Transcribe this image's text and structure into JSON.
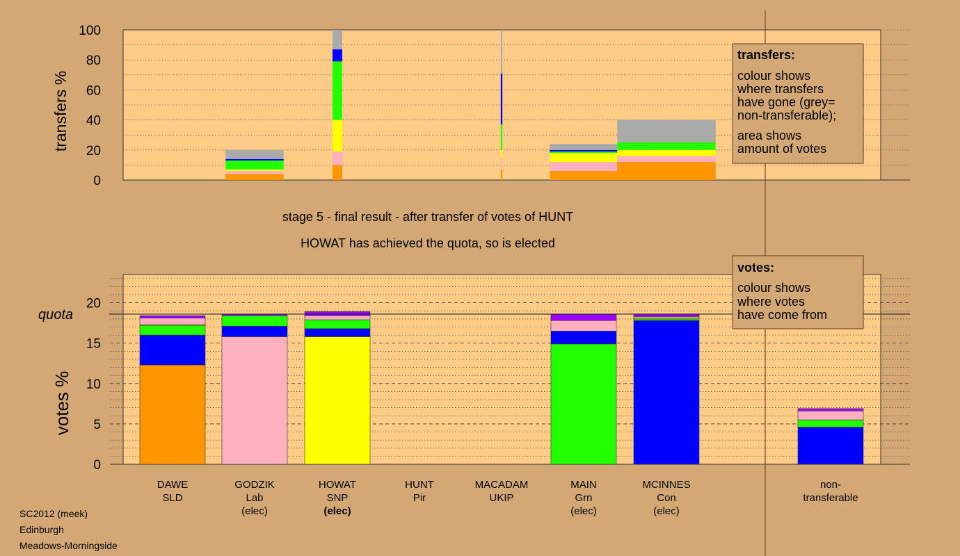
{
  "chart_data": [
    {
      "type": "bar",
      "stacked": true,
      "ylabel": "transfers %",
      "ylim": [
        0,
        100
      ],
      "yticks": [
        0,
        20,
        40,
        60,
        80,
        100
      ],
      "categories": [
        "DAWE",
        "GODZIK",
        "HOWAT",
        "HUNT",
        "MACADAM",
        "MAIN",
        "MCINNES"
      ],
      "series_colors": {
        "SLD": "#ff9500",
        "Lab": "#ffb0c0",
        "SNP": "#ffff00",
        "Grn": "#22ff00",
        "Con": "#0000ff",
        "Other": "#9a00ff",
        "non-transferable": "#aaaaaa"
      },
      "bars": [
        {
          "category": "DAWE",
          "segments": []
        },
        {
          "category": "GODZIK",
          "segments": [
            {
              "color": "#ff9500",
              "value": 4
            },
            {
              "color": "#ffb0c0",
              "value": 2
            },
            {
              "color": "#ffff00",
              "value": 1
            },
            {
              "color": "#22ff00",
              "value": 6
            },
            {
              "color": "#0000ff",
              "value": 1
            },
            {
              "color": "#aaaaaa",
              "value": 6
            }
          ]
        },
        {
          "category": "HOWAT",
          "segments": [
            {
              "color": "#ff9500",
              "value": 10
            },
            {
              "color": "#ffb0c0",
              "value": 9
            },
            {
              "color": "#ffff00",
              "value": 21
            },
            {
              "color": "#22ff00",
              "value": 39
            },
            {
              "color": "#0000ff",
              "value": 8
            },
            {
              "color": "#aaaaaa",
              "value": 13
            }
          ]
        },
        {
          "category": "HUNT",
          "segments": []
        },
        {
          "category": "MACADAM",
          "segments": [
            {
              "color": "#ff9500",
              "value": 7
            },
            {
              "color": "#ffb0c0",
              "value": 8
            },
            {
              "color": "#ffff00",
              "value": 5
            },
            {
              "color": "#22ff00",
              "value": 17
            },
            {
              "color": "#0000ff",
              "value": 34
            },
            {
              "color": "#aaaaaa",
              "value": 29
            }
          ]
        },
        {
          "category": "MAIN",
          "segments": [
            {
              "color": "#ff9500",
              "value": 6
            },
            {
              "color": "#ffb0c0",
              "value": 6
            },
            {
              "color": "#ffff00",
              "value": 6
            },
            {
              "color": "#22ff00",
              "value": 1
            },
            {
              "color": "#0000ff",
              "value": 1
            },
            {
              "color": "#aaaaaa",
              "value": 4
            }
          ]
        },
        {
          "category": "MCINNES",
          "segments": [
            {
              "color": "#ff9500",
              "value": 12
            },
            {
              "color": "#ffb0c0",
              "value": 4
            },
            {
              "color": "#ffff00",
              "value": 4
            },
            {
              "color": "#22ff00",
              "value": 5
            },
            {
              "color": "#aaaaaa",
              "value": 15
            }
          ]
        }
      ],
      "bar_widths_votes_pct": [
        0,
        3.6,
        0.6,
        0,
        0.1,
        4.2,
        6.1
      ],
      "grid": true,
      "legend": {
        "title": "transfers:",
        "lines": [
          "colour shows",
          "where transfers",
          "have gone (grey=",
          "non-transferable);"
        ],
        "lines2": [
          "area shows",
          "amount of votes"
        ],
        "placement": "top-right"
      }
    },
    {
      "type": "bar",
      "stacked": true,
      "ylabel": "votes %",
      "ylim": [
        0,
        23.5
      ],
      "yticks": [
        0,
        5,
        10,
        15,
        20
      ],
      "quota": 18.6,
      "quota_label": "quota",
      "categories": [
        "DAWE",
        "GODZIK",
        "HOWAT",
        "HUNT",
        "MACADAM",
        "MAIN",
        "MCINNES",
        "non-transferable"
      ],
      "bars": [
        {
          "category": "DAWE",
          "segments": [
            {
              "color": "#ff9500",
              "value": 12.3
            },
            {
              "color": "#0000ff",
              "value": 3.7
            },
            {
              "color": "#22ff00",
              "value": 1.2
            },
            {
              "color": "#ffff00",
              "value": 0.1
            },
            {
              "color": "#ffb0c0",
              "value": 0.8
            },
            {
              "color": "#9a00ff",
              "value": 0.3
            }
          ]
        },
        {
          "category": "GODZIK",
          "segments": [
            {
              "color": "#ffb0c0",
              "value": 15.8
            },
            {
              "color": "#0000ff",
              "value": 1.3
            },
            {
              "color": "#22ff00",
              "value": 1.3
            },
            {
              "color": "#9a00ff",
              "value": 0.2
            }
          ]
        },
        {
          "category": "HOWAT",
          "segments": [
            {
              "color": "#ffff00",
              "value": 15.8
            },
            {
              "color": "#0000ff",
              "value": 1.0
            },
            {
              "color": "#22ff00",
              "value": 1.1
            },
            {
              "color": "#ffb0c0",
              "value": 0.5
            },
            {
              "color": "#9a00ff",
              "value": 0.5
            }
          ]
        },
        {
          "category": "HUNT",
          "segments": []
        },
        {
          "category": "MACADAM",
          "segments": []
        },
        {
          "category": "MAIN",
          "segments": [
            {
              "color": "#22ff00",
              "value": 14.9
            },
            {
              "color": "#0000ff",
              "value": 1.6
            },
            {
              "color": "#ffb0c0",
              "value": 1.3
            },
            {
              "color": "#9a00ff",
              "value": 0.8
            }
          ]
        },
        {
          "category": "MCINNES",
          "segments": [
            {
              "color": "#0000ff",
              "value": 17.8
            },
            {
              "color": "#22ff00",
              "value": 0.2
            },
            {
              "color": "#ffff00",
              "value": 0.1
            },
            {
              "color": "#ffb0c0",
              "value": 0.2
            },
            {
              "color": "#9a00ff",
              "value": 0.3
            }
          ]
        },
        {
          "category": "non-transferable",
          "segments": [
            {
              "color": "#0000ff",
              "value": 4.6
            },
            {
              "color": "#22ff00",
              "value": 0.9
            },
            {
              "color": "#ffb0c0",
              "value": 1.1
            },
            {
              "color": "#9a00ff",
              "value": 0.3
            }
          ]
        }
      ],
      "grid": true,
      "legend": {
        "title": "votes:",
        "lines": [
          "colour shows",
          "where votes",
          "have come from"
        ],
        "placement": "top-right"
      }
    }
  ],
  "stage_title": "stage 5 - final result - after transfer of votes of HUNT",
  "stage_subtitle": "HOWAT has achieved the quota, so is elected",
  "candidates": [
    {
      "name": "DAWE",
      "party": "SLD",
      "status": "",
      "bold": false
    },
    {
      "name": "GODZIK",
      "party": "Lab",
      "status": "(elec)",
      "bold": false
    },
    {
      "name": "HOWAT",
      "party": "SNP",
      "status": "(elec)",
      "bold": true
    },
    {
      "name": "HUNT",
      "party": "Pir",
      "status": "",
      "bold": false
    },
    {
      "name": "MACADAM",
      "party": "UKIP",
      "status": "",
      "bold": false
    },
    {
      "name": "MAIN",
      "party": "Grn",
      "status": "(elec)",
      "bold": false
    },
    {
      "name": "MCINNES",
      "party": "Con",
      "status": "(elec)",
      "bold": false
    }
  ],
  "nontransferable_label": [
    "non-",
    "transferable"
  ],
  "footer": {
    "line1": "SC2012 (meek)",
    "line2": "Edinburgh",
    "line3": "Meadows-Morningside"
  },
  "colors": {
    "background": "#d4a874",
    "plot_bg": "#ffcc88"
  }
}
